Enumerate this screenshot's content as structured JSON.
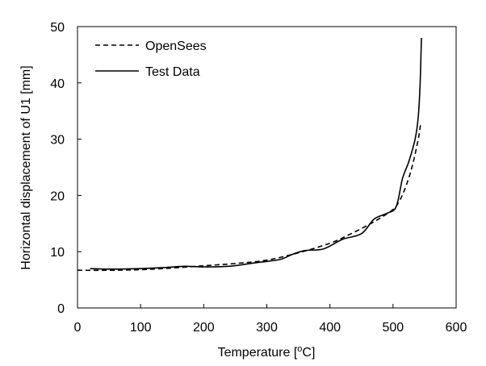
{
  "chart_data": {
    "type": "line",
    "title": "",
    "xlabel_parts": [
      "Temperature [",
      "o",
      "C]"
    ],
    "ylabel": "Horizontal displacement of U1 [mm]",
    "xlim": [
      0,
      600
    ],
    "ylim": [
      0,
      50
    ],
    "x_ticks": [
      "0",
      "100",
      "200",
      "300",
      "400",
      "500",
      "600"
    ],
    "y_ticks": [
      "0",
      "10",
      "20",
      "30",
      "40",
      "50"
    ],
    "grid": false,
    "legend_position": "top-left",
    "series": [
      {
        "name": "OpenSees",
        "style": "dashed",
        "color": "#000000",
        "x": [
          0,
          50,
          100,
          150,
          200,
          250,
          300,
          350,
          400,
          430,
          460,
          480,
          500,
          510,
          520,
          530,
          540,
          544
        ],
        "y": [
          6.7,
          6.7,
          6.8,
          7.1,
          7.5,
          7.9,
          8.5,
          9.8,
          11.5,
          13.0,
          14.7,
          16.0,
          17.5,
          19.0,
          21.5,
          25.0,
          30.0,
          33.0
        ]
      },
      {
        "name": "Test Data",
        "style": "solid",
        "color": "#000000",
        "x": [
          20,
          50,
          100,
          140,
          170,
          200,
          240,
          280,
          320,
          340,
          360,
          390,
          420,
          450,
          470,
          490,
          505,
          515,
          525,
          535,
          540,
          543,
          545
        ],
        "y": [
          7.0,
          6.9,
          7.0,
          7.2,
          7.4,
          7.3,
          7.4,
          8.0,
          8.6,
          9.5,
          10.2,
          10.5,
          12.2,
          13.2,
          15.8,
          16.8,
          18.0,
          23.0,
          26.0,
          30.0,
          34.0,
          40.0,
          48.0
        ]
      }
    ]
  }
}
